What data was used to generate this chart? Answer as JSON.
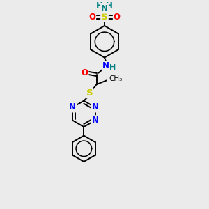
{
  "background_color": "#ebebeb",
  "line_color": "#000000",
  "bond_lw": 1.4,
  "font_size": 8.5,
  "colors": {
    "N": "#0000ff",
    "O": "#ff0000",
    "S": "#cccc00",
    "NH": "#0000ff",
    "NH2": "#008080",
    "H_teal": "#008080"
  },
  "layout": {
    "xlim": [
      0,
      10
    ],
    "ylim": [
      0,
      13
    ],
    "figsize": [
      3.0,
      3.0
    ],
    "dpi": 100
  }
}
